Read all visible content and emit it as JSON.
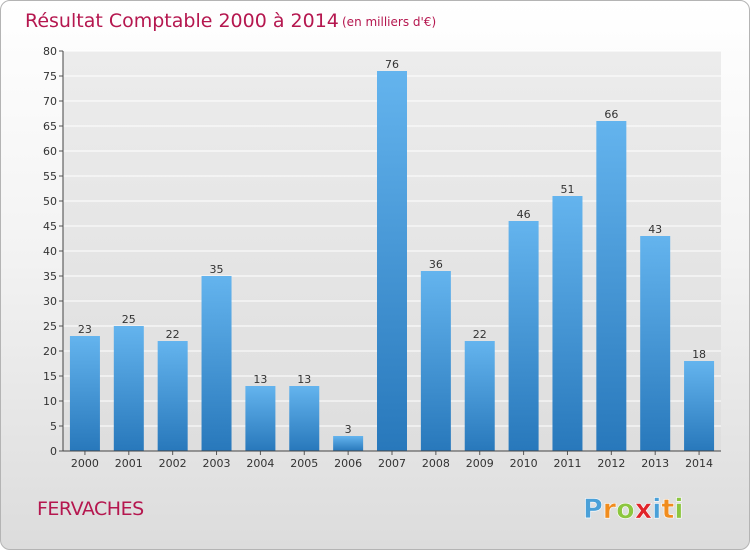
{
  "header": {
    "title": "Résultat Comptable 2000 à 2014",
    "subtitle": "(en milliers d'€)"
  },
  "commune": "FERVACHES",
  "logo": {
    "text": "Proxiti",
    "letters": [
      "P",
      "r",
      "o",
      "x",
      "i",
      "t",
      "i"
    ],
    "colors": [
      "#4aa0d8",
      "#f08c1e",
      "#8cc63f",
      "#e0242a",
      "#4aa0d8",
      "#f08c1e",
      "#8cc63f"
    ]
  },
  "colors": {
    "title": "#b5174f",
    "bar_light": "#64b4ee",
    "bar_dark": "#2878bb"
  },
  "chart_data": {
    "type": "bar",
    "title": "Résultat Comptable 2000 à 2014",
    "subtitle": "(en milliers d'€)",
    "categories": [
      "2000",
      "2001",
      "2002",
      "2003",
      "2004",
      "2005",
      "2006",
      "2007",
      "2008",
      "2009",
      "2010",
      "2011",
      "2012",
      "2013",
      "2014"
    ],
    "values": [
      23,
      25,
      22,
      35,
      13,
      13,
      3,
      76,
      36,
      22,
      46,
      51,
      66,
      43,
      18
    ],
    "ylim": [
      0,
      80
    ],
    "yticks": [
      0,
      5,
      10,
      15,
      20,
      25,
      30,
      35,
      40,
      45,
      50,
      55,
      60,
      65,
      70,
      75,
      80
    ],
    "grid": true,
    "legend": false
  }
}
